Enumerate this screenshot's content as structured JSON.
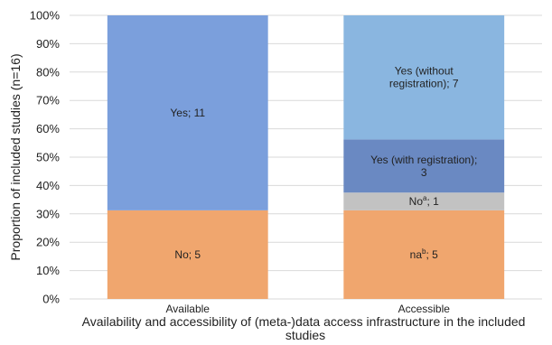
{
  "chart_data": {
    "type": "bar",
    "stacked": true,
    "categories": [
      "Available",
      "Accessible"
    ],
    "ylim": [
      0,
      100
    ],
    "yticks": [
      "0%",
      "10%",
      "20%",
      "30%",
      "40%",
      "50%",
      "60%",
      "70%",
      "80%",
      "90%",
      "100%"
    ],
    "ylabel": "Proportion of included studies (n=16)",
    "xlabel": "Availability and accessibility of (meta-)data access infrastructure in the included studies",
    "xlabel_lines": [
      "Availability and accessibility of (meta-)data access infrastructure in the included",
      "studies"
    ],
    "grid": true,
    "legend": "none",
    "stacks": [
      {
        "category": "Available",
        "segments": [
          {
            "label_parts": [
              [
                "No; 5",
                ""
              ]
            ],
            "value": 31.25,
            "count": 5,
            "color": "#f0a66e"
          },
          {
            "label_parts": [
              [
                "Yes; 11",
                ""
              ]
            ],
            "value": 68.75,
            "count": 11,
            "color": "#7b9fdc"
          }
        ]
      },
      {
        "category": "Accessible",
        "segments": [
          {
            "label_parts": [
              [
                "na",
                "b",
                "; 5"
              ]
            ],
            "value": 31.25,
            "count": 5,
            "color": "#f0a66e"
          },
          {
            "label_parts": [
              [
                "No",
                "a",
                "; 1"
              ]
            ],
            "value": 6.25,
            "count": 1,
            "color": "#c2c2c2"
          },
          {
            "label_parts": [
              [
                "Yes (with registration);",
                ""
              ],
              [
                "3",
                ""
              ]
            ],
            "value": 18.75,
            "count": 3,
            "color": "#6a89c2"
          },
          {
            "label_parts": [
              [
                "Yes (without",
                ""
              ],
              [
                "registration); 7",
                ""
              ]
            ],
            "value": 43.75,
            "count": 7,
            "color": "#8ab6e0"
          }
        ]
      }
    ]
  }
}
